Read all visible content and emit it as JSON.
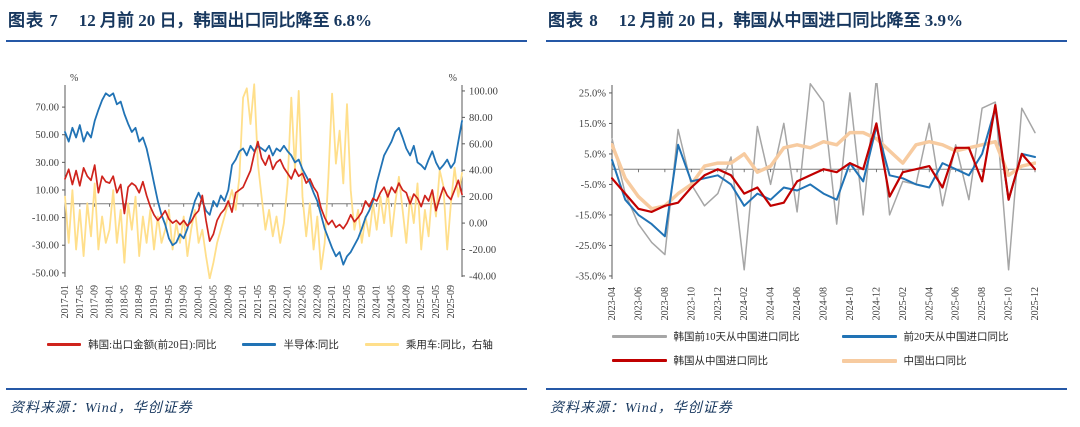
{
  "panels": [
    {
      "label": "图表 7",
      "title": "12 月前 20 日，韩国出口同比降至 6.8%"
    },
    {
      "label": "图表 8",
      "title": "12 月前 20 日，韩国从中国进口同比降至 3.9%"
    }
  ],
  "source_note": "资料来源：Wind，华创证券",
  "colors": {
    "title_navy": "#17375E",
    "rule_blue": "#2558A6",
    "axis_gray": "#595959",
    "zero_line_gray": "#7F7F7F",
    "export_red": "#CF231C",
    "semiconductor_blue": "#2173B5",
    "car_yellow": "#FFDF8B",
    "kr10_gray": "#A6A6A6",
    "kr20_blue": "#2173B5",
    "kr_import_red": "#C00000",
    "cn_export_peach": "#F7CBA0"
  },
  "chart_data": [
    {
      "type": "line",
      "title": "12 月前 20 日，韩国出口同比降至 6.8%",
      "legend_position": "bottom",
      "grid": false,
      "x_tick_labels": [
        "2017-01",
        "2017-05",
        "2017-09",
        "2018-01",
        "2018-05",
        "2018-09",
        "2019-01",
        "2019-05",
        "2019-09",
        "2020-01",
        "2020-05",
        "2020-09",
        "2021-01",
        "2021-05",
        "2021-09",
        "2022-01",
        "2022-05",
        "2022-09",
        "2023-01",
        "2023-05",
        "2023-09",
        "2024-01",
        "2024-05",
        "2024-09",
        "2025-01",
        "2025-05",
        "2025-09"
      ],
      "y_left": {
        "unit": "%",
        "ticks": [
          70,
          50,
          30,
          10,
          -10,
          -30,
          -50
        ],
        "tick_labels": [
          "70.00",
          "50.00",
          "30.00",
          "10.00",
          "-10.00",
          "-30.00",
          "-50.00"
        ],
        "lim": [
          -53,
          86
        ]
      },
      "y_right": {
        "unit": "%",
        "ticks": [
          100,
          80,
          60,
          40,
          20,
          0,
          -20,
          -40
        ],
        "tick_labels": [
          "100.00",
          "80.00",
          "60.00",
          "40.00",
          "20.00",
          "0.00",
          "-20.00",
          "-40.00"
        ],
        "lim": [
          -40.8,
          104.5
        ]
      },
      "series": [
        {
          "id": "korea-export-yoy",
          "name": "韩国:出口金额(前20日):同比",
          "color": "#CF231C",
          "axis": "left",
          "width": 1.7,
          "z": 3,
          "values": [
            18,
            25,
            14,
            24,
            13,
            26,
            20,
            17,
            28,
            8,
            20,
            16,
            15,
            20,
            8,
            14,
            -7,
            12,
            15,
            13,
            8,
            16,
            6,
            -2,
            -8,
            -12,
            -9,
            -5,
            -11,
            -14,
            -12,
            -15,
            -12,
            -16,
            -13,
            -8,
            -5,
            6,
            -12,
            -27,
            -22,
            -12,
            -7,
            -4,
            2,
            -6,
            8,
            10,
            12,
            18,
            24,
            36,
            45,
            33,
            28,
            35,
            25,
            30,
            32,
            26,
            22,
            18,
            25,
            20,
            22,
            15,
            18,
            12,
            8,
            -3,
            -10,
            -15,
            -12,
            -17,
            -15,
            -18,
            -14,
            -8,
            -13,
            -10,
            -6,
            2,
            -2,
            4,
            2,
            8,
            12,
            5,
            12,
            8,
            15,
            10,
            8,
            0,
            7,
            4,
            -2,
            6,
            2,
            10,
            -5,
            4,
            12,
            6,
            3,
            10,
            17,
            6.8
          ]
        },
        {
          "id": "semiconductor-yoy",
          "name": "半导体:同比",
          "color": "#2173B5",
          "axis": "left",
          "width": 1.8,
          "z": 2,
          "values": [
            52,
            45,
            55,
            48,
            57,
            45,
            52,
            48,
            60,
            68,
            75,
            80,
            78,
            80,
            72,
            74,
            65,
            58,
            52,
            55,
            45,
            48,
            40,
            28,
            15,
            2,
            -8,
            -15,
            -25,
            -30,
            -28,
            -22,
            -25,
            -18,
            -8,
            2,
            8,
            2,
            -5,
            -8,
            2,
            -2,
            6,
            2,
            10,
            28,
            32,
            38,
            40,
            35,
            42,
            38,
            42,
            40,
            38,
            42,
            35,
            40,
            38,
            42,
            38,
            35,
            30,
            32,
            25,
            20,
            15,
            8,
            2,
            -8,
            -18,
            -25,
            -32,
            -38,
            -35,
            -44,
            -38,
            -35,
            -30,
            -25,
            -18,
            -10,
            -5,
            2,
            15,
            25,
            35,
            40,
            45,
            52,
            55,
            48,
            40,
            35,
            42,
            30,
            28,
            25,
            32,
            38,
            30,
            25,
            28,
            32,
            26,
            30,
            45,
            60
          ]
        },
        {
          "id": "passenger-car-yoy",
          "name": "乘用车:同比，右轴",
          "color": "#FFDF8B",
          "axis": "right",
          "width": 1.8,
          "z": 1,
          "values": [
            20,
            -15,
            25,
            -20,
            10,
            -25,
            15,
            -10,
            30,
            -20,
            5,
            -15,
            -5,
            25,
            -15,
            10,
            -30,
            15,
            -5,
            20,
            -25,
            5,
            -15,
            10,
            -20,
            5,
            -15,
            -5,
            10,
            -20,
            0,
            -15,
            5,
            -25,
            -5,
            10,
            -15,
            -5,
            -25,
            -42,
            -30,
            -15,
            -5,
            5,
            15,
            25,
            10,
            35,
            95,
            102,
            75,
            105,
            45,
            20,
            -5,
            10,
            -10,
            5,
            -15,
            0,
            30,
            95,
            40,
            100,
            20,
            -10,
            15,
            -20,
            5,
            -35,
            -15,
            35,
            98,
            45,
            70,
            30,
            90,
            25,
            -5,
            10,
            -15,
            5,
            -10,
            15,
            -5,
            20,
            0,
            25,
            -10,
            15,
            35,
            10,
            -15,
            20,
            0,
            30,
            -20,
            10,
            -10,
            25,
            5,
            40,
            28,
            -20,
            15,
            42,
            20,
            38
          ]
        }
      ]
    },
    {
      "type": "line",
      "title": "12 月前 20 日，韩国从中国进口同比降至 3.9%",
      "legend_position": "bottom",
      "grid": false,
      "x_tick_labels": [
        "2023-04",
        "2023-06",
        "2023-08",
        "2023-10",
        "2023-12",
        "2024-02",
        "2024-04",
        "2024-06",
        "2024-08",
        "2024-10",
        "2024-12",
        "2025-02",
        "2025-04",
        "2025-06",
        "2025-08",
        "2025-10",
        "2025-12"
      ],
      "y_left": {
        "unit": "",
        "ticks": [
          25,
          15,
          5,
          -5,
          -15,
          -25,
          -35
        ],
        "tick_labels": [
          "25.0%",
          "15.0%",
          "5.0%",
          "-5.0%",
          "-15.0%",
          "-25.0%",
          "-35.0%"
        ],
        "lim": [
          -36,
          27.6
        ]
      },
      "series": [
        {
          "id": "kr-first10d-imports-from-china",
          "name": "韩国前10天从中国进口同比",
          "color": "#A6A6A6",
          "axis": "left",
          "width": 1.5,
          "z": 1,
          "values": [
            10,
            -8,
            -18,
            -24,
            -28,
            13,
            -5,
            -12,
            -8,
            4,
            -33,
            14,
            -5,
            15,
            -14,
            28,
            22,
            -18,
            25,
            -15,
            30,
            -15,
            -4,
            -5,
            15,
            -12,
            8,
            -10,
            20,
            22,
            -33,
            20,
            12
          ]
        },
        {
          "id": "kr-first20d-imports-from-china",
          "name": "前20天从中国进口同比",
          "color": "#2173B5",
          "axis": "left",
          "width": 2,
          "z": 3,
          "values": [
            3,
            -10,
            -15,
            -18,
            -22,
            8,
            -4,
            -3,
            -2,
            -5,
            -12,
            -8,
            -10,
            -6,
            -7,
            -5,
            -8,
            -10,
            2,
            -4,
            14,
            -2,
            -3,
            -5,
            -6,
            2,
            0,
            -2,
            5,
            20,
            -10,
            5,
            4
          ]
        },
        {
          "id": "kr-imports-from-china",
          "name": "韩国从中国进口同比",
          "color": "#C00000",
          "axis": "left",
          "width": 2.2,
          "z": 4,
          "values": [
            -3,
            -8,
            -13,
            -14,
            -12,
            -11,
            -6,
            -2,
            0,
            -2,
            -8,
            -6,
            -12,
            -11,
            -4,
            -2,
            0,
            -1,
            2,
            0,
            15,
            -9,
            -1,
            0,
            1,
            -6,
            7,
            7,
            -4,
            21,
            -10,
            5,
            0
          ]
        },
        {
          "id": "china-export-yoy",
          "name": "中国出口同比",
          "color": "#F7CBA0",
          "axis": "left",
          "width": 3.5,
          "z": 2,
          "values": [
            8,
            -3,
            -9,
            -13,
            -12,
            -8,
            -5,
            1,
            2,
            2,
            5,
            -1,
            1,
            7,
            8,
            7,
            9,
            8,
            12,
            12,
            10,
            6,
            2,
            8,
            9,
            8,
            6,
            7,
            8,
            9,
            -2,
            1,
            2
          ]
        }
      ]
    }
  ]
}
